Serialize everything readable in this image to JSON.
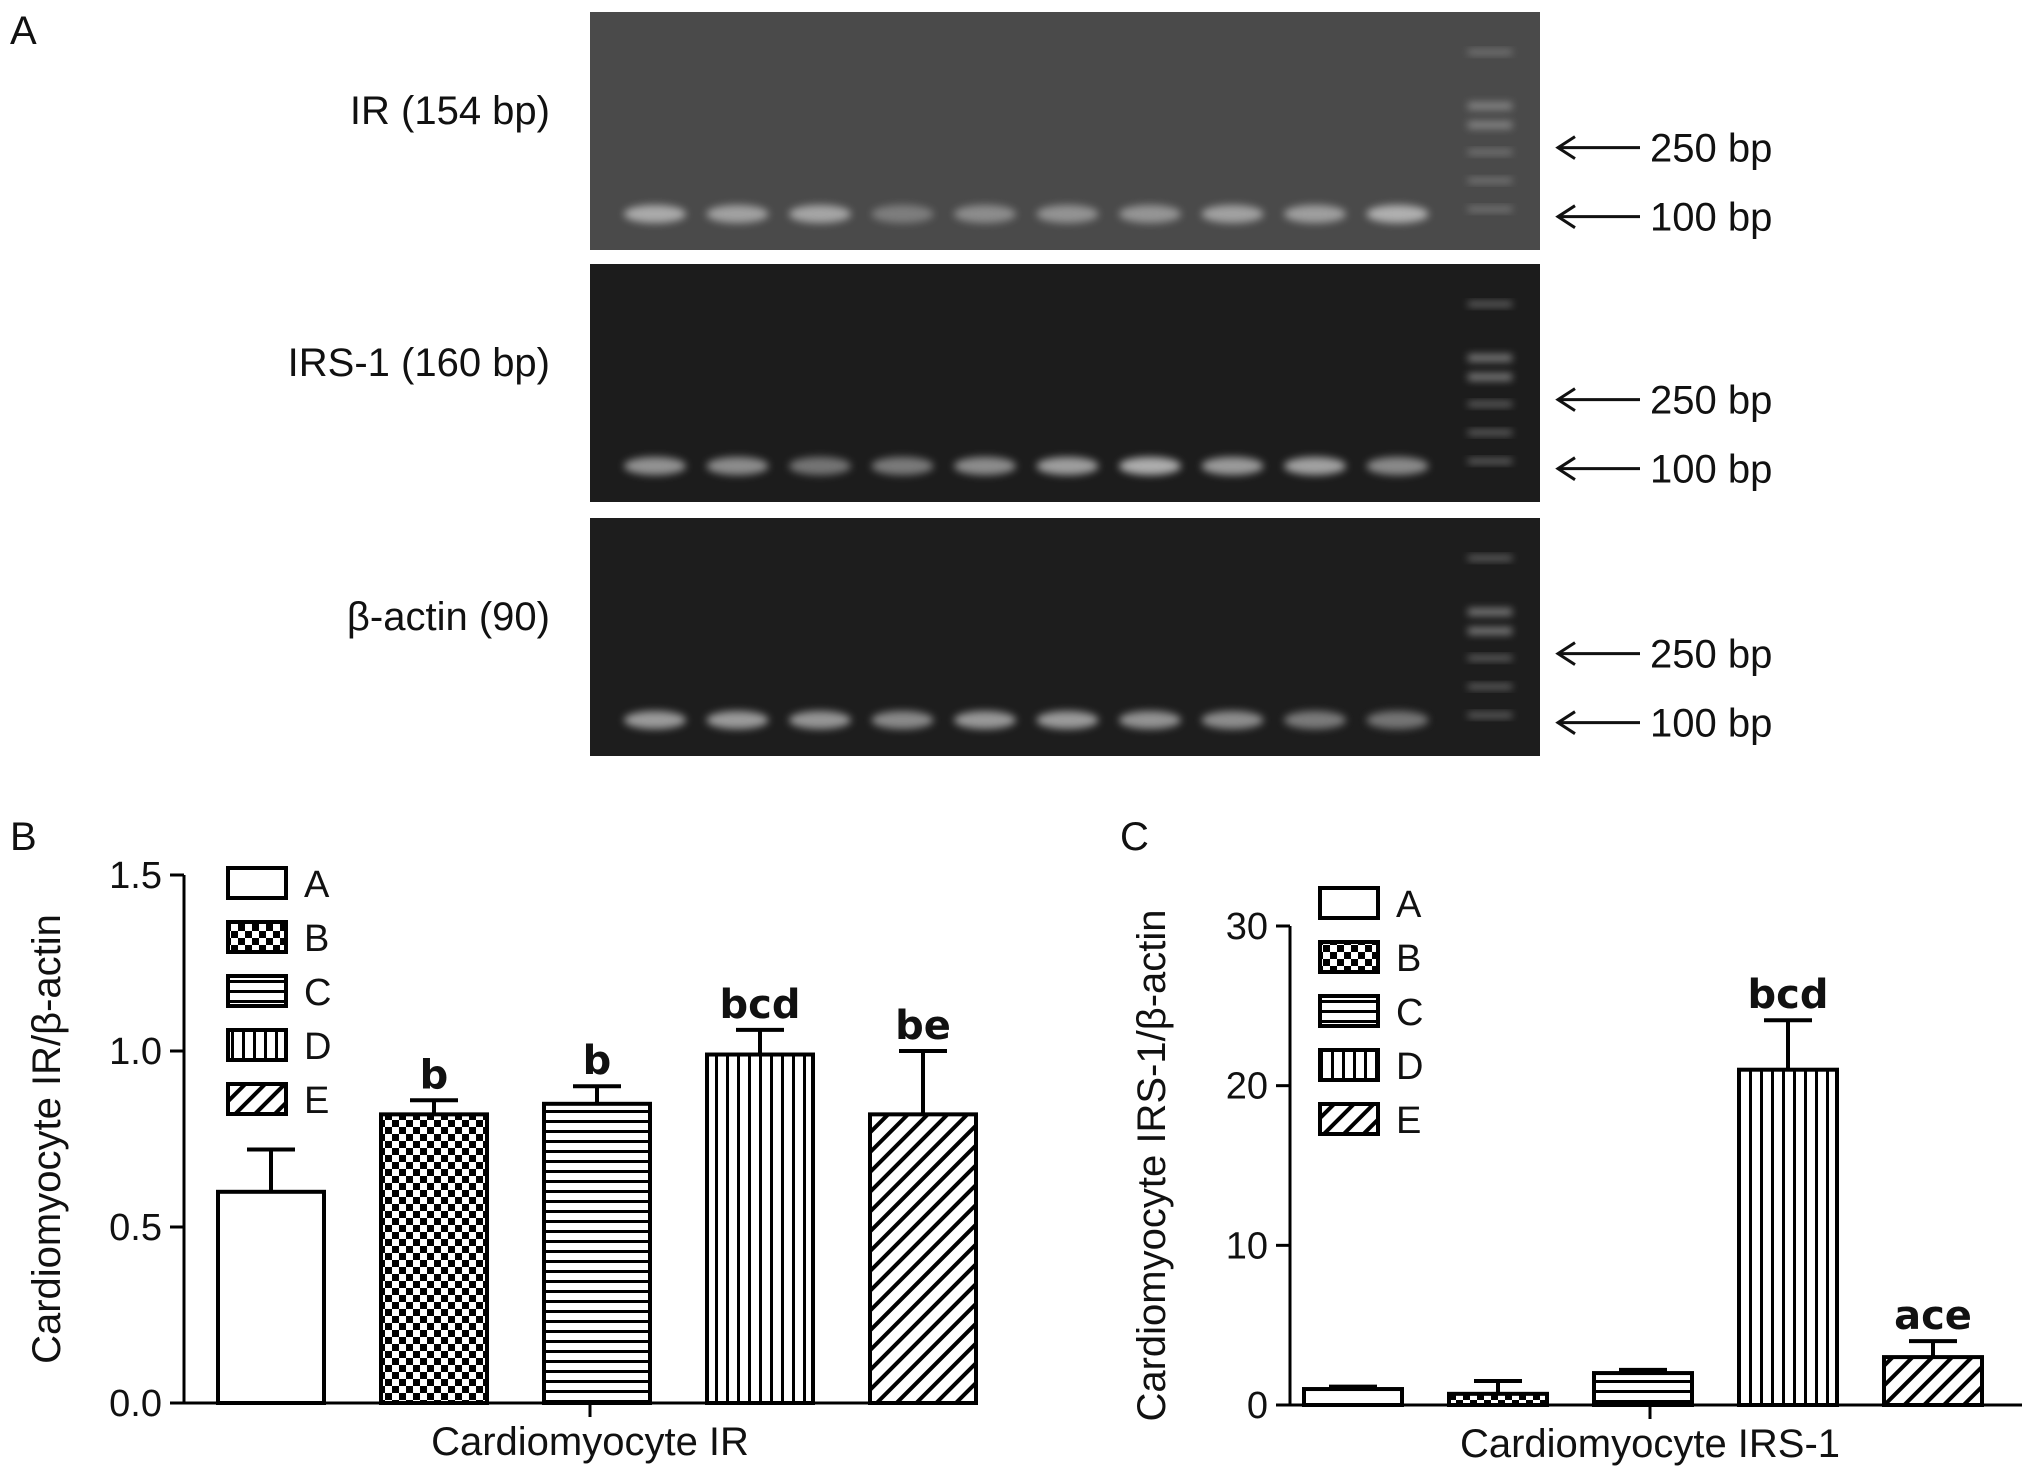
{
  "panels": {
    "a": "A",
    "b": "B",
    "c": "C"
  },
  "gel": {
    "rows": [
      {
        "label": "IR (154 bp)",
        "bg": "#4a4a4a",
        "band_intensity": [
          0.7,
          0.62,
          0.66,
          0.32,
          0.45,
          0.5,
          0.52,
          0.62,
          0.6,
          0.74
        ]
      },
      {
        "label": "IRS-1 (160 bp)",
        "bg": "#1c1c1c",
        "band_intensity": [
          0.55,
          0.5,
          0.3,
          0.35,
          0.5,
          0.65,
          0.78,
          0.62,
          0.68,
          0.48
        ]
      },
      {
        "label": "β-actin (90)",
        "bg": "#1d1d1d",
        "band_intensity": [
          0.62,
          0.62,
          0.58,
          0.48,
          0.6,
          0.62,
          0.55,
          0.5,
          0.35,
          0.3
        ]
      }
    ],
    "markers": [
      "250 bp",
      "100 bp"
    ]
  },
  "colors": {
    "bar_fill": "#ffffff",
    "bar_stroke": "#000000",
    "pattern_ink": "#000000"
  },
  "chart_data": [
    {
      "type": "bar",
      "panel": "B",
      "title": "",
      "xlabel": "Cardiomyocyte IR",
      "ylabel": "Cardiomyocyte IR/β-actin",
      "ylim": [
        0,
        1.5
      ],
      "yticks": [
        "0.0",
        "0.5",
        "1.0",
        "1.5"
      ],
      "yticks_values": [
        0,
        0.5,
        1.0,
        1.5
      ],
      "categories": [
        "A",
        "B",
        "C",
        "D",
        "E"
      ],
      "values": [
        0.6,
        0.82,
        0.85,
        0.99,
        0.82
      ],
      "errors": [
        0.12,
        0.04,
        0.05,
        0.07,
        0.18
      ],
      "annotations": [
        "",
        "b",
        "b",
        "bcd",
        "be"
      ],
      "patterns": [
        "solid",
        "checker",
        "hlines",
        "vlines",
        "diagonal"
      ],
      "legend": [
        "A",
        "B",
        "C",
        "D",
        "E"
      ],
      "legend_position": "top-left",
      "grid": false
    },
    {
      "type": "bar",
      "panel": "C",
      "title": "",
      "xlabel": "Cardiomyocyte IRS-1",
      "ylabel": "Cardiomyocyte IRS-1/β-actin",
      "ylim": [
        0,
        30
      ],
      "yticks": [
        "0",
        "10",
        "20",
        "30"
      ],
      "yticks_values": [
        0,
        10,
        20,
        30
      ],
      "categories": [
        "A",
        "B",
        "C",
        "D",
        "E"
      ],
      "values": [
        1.0,
        0.7,
        2.0,
        21.0,
        3.0
      ],
      "errors": [
        0.15,
        0.8,
        0.2,
        3.1,
        1.0
      ],
      "annotations": [
        "",
        "",
        "",
        "bcd",
        "ace"
      ],
      "patterns": [
        "solid",
        "checker",
        "hlines",
        "vlines",
        "diagonal"
      ],
      "legend": [
        "A",
        "B",
        "C",
        "D",
        "E"
      ],
      "legend_position": "top-left",
      "grid": false
    }
  ]
}
